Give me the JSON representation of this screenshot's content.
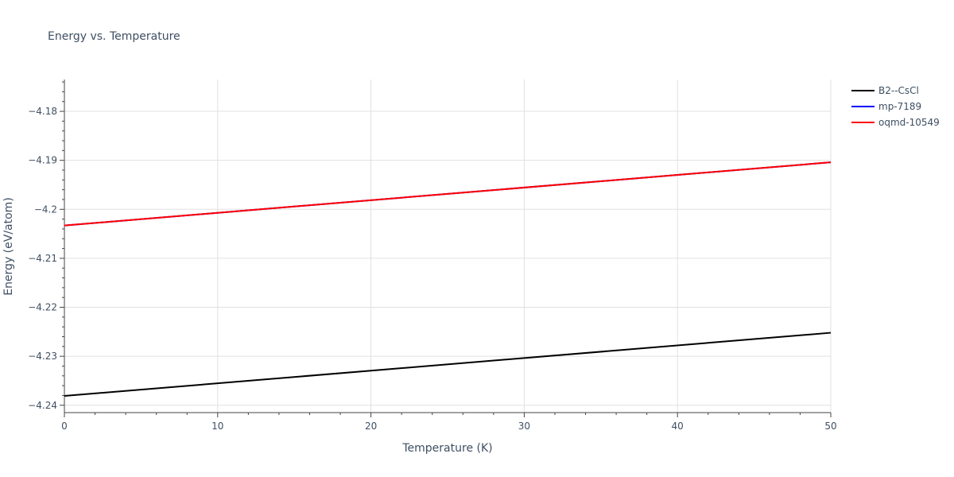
{
  "chart_data": {
    "type": "line",
    "title": "Energy vs. Temperature",
    "xlabel": "Temperature (K)",
    "ylabel": "Energy (eV/atom)",
    "xlim": [
      0,
      50
    ],
    "ylim": [
      -4.2415,
      -4.1735
    ],
    "x_ticks": [
      0,
      10,
      20,
      30,
      40,
      50
    ],
    "x_tick_labels": [
      "0",
      "10",
      "20",
      "30",
      "40",
      "50"
    ],
    "y_ticks": [
      -4.18,
      -4.19,
      -4.2,
      -4.21,
      -4.22,
      -4.23,
      -4.24
    ],
    "y_tick_labels": [
      "−4.18",
      "−4.19",
      "−4.2",
      "−4.21",
      "−4.22",
      "−4.23",
      "−4.24"
    ],
    "grid": true,
    "legend_position": "top-right",
    "series": [
      {
        "name": "B2--CsCl",
        "color": "#000000",
        "x": [
          0,
          50
        ],
        "y": [
          -4.2381,
          -4.2252
        ]
      },
      {
        "name": "mp-7189",
        "color": "#0000ff",
        "x": [
          0,
          50
        ],
        "y": [
          -4.2033,
          -4.1904
        ]
      },
      {
        "name": "oqmd-10549",
        "color": "#ff0000",
        "x": [
          0,
          50
        ],
        "y": [
          -4.2033,
          -4.1904
        ]
      }
    ]
  }
}
